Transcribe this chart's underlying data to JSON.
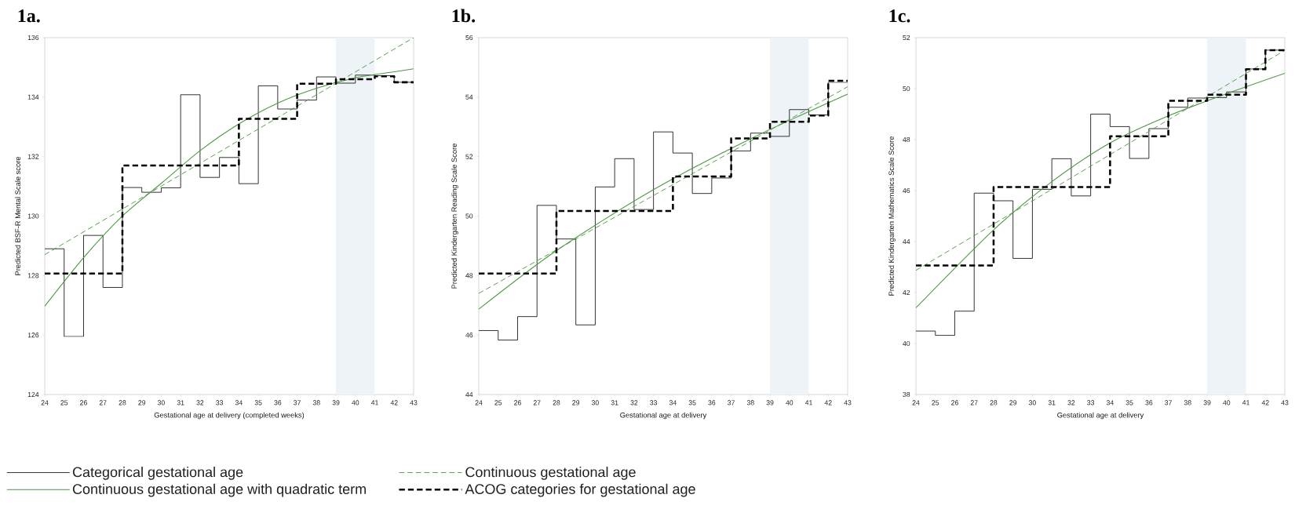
{
  "chart_data": [
    {
      "type": "line",
      "title": "1a.",
      "xlabel": "Gestational age at delivery (completed weeks)",
      "ylabel": "Predicted BSF-R Mental Scale score",
      "xlim": [
        24,
        43
      ],
      "xticks": [
        24,
        25,
        26,
        27,
        28,
        29,
        30,
        31,
        32,
        33,
        34,
        35,
        36,
        37,
        38,
        39,
        40,
        41,
        42,
        43
      ],
      "ylim": [
        124,
        136
      ],
      "yticks": [
        124,
        126,
        128,
        130,
        132,
        134,
        136
      ],
      "legend": "bottom",
      "bands": [
        {
          "axis": "x",
          "from": 39,
          "to": 41,
          "color": "#eef3f8"
        }
      ],
      "series": [
        {
          "name": "Categorical gestational age",
          "type": "step",
          "line_style": "solid",
          "color": "#000000",
          "x": [
            24,
            25,
            26,
            27,
            28,
            29,
            30,
            31,
            32,
            33,
            34,
            35,
            36,
            37,
            38,
            39,
            40,
            41,
            42,
            43
          ],
          "values": [
            128.9,
            125.95,
            129.35,
            127.6,
            130.96,
            130.8,
            130.95,
            134.08,
            131.3,
            131.97,
            131.09,
            134.38,
            133.6,
            133.9,
            134.68,
            134.47,
            134.74,
            134.72,
            134.5,
            134.5
          ]
        },
        {
          "name": "Continuous gestational age",
          "line_style": "dashed",
          "color": "#4a9a3f",
          "x": [
            24,
            43
          ],
          "values": [
            128.7,
            136.0
          ]
        },
        {
          "name": "Continuous gestational age with quadratic term",
          "line_style": "solid",
          "color": "#4a9a3f",
          "x": [
            24,
            26,
            28,
            30,
            32,
            34,
            36,
            38,
            40,
            42,
            43
          ],
          "values": [
            126.97,
            128.6,
            130.0,
            131.1,
            132.2,
            133.1,
            133.8,
            134.3,
            134.65,
            134.85,
            134.95
          ]
        },
        {
          "name": "ACOG categories for gestational age",
          "type": "step",
          "line_style": "dashed",
          "color": "#000000",
          "x": [
            24,
            28,
            34,
            37,
            39,
            41,
            42,
            43
          ],
          "values": [
            128.07,
            131.7,
            133.27,
            134.45,
            134.6,
            134.7,
            134.5,
            134.5
          ]
        }
      ]
    },
    {
      "type": "line",
      "title": "1b.",
      "xlabel": "Gestational age at delivery",
      "ylabel": "Predicted Kindergarten Reading Scale Score",
      "xlim": [
        24,
        43
      ],
      "xticks": [
        24,
        25,
        26,
        27,
        28,
        29,
        30,
        31,
        32,
        33,
        34,
        35,
        36,
        37,
        38,
        39,
        40,
        41,
        42,
        43
      ],
      "ylim": [
        44,
        56
      ],
      "yticks": [
        44,
        46,
        48,
        50,
        52,
        54,
        56
      ],
      "bands": [
        {
          "axis": "x",
          "from": 39,
          "to": 41,
          "color": "#eef3f8"
        }
      ],
      "series": [
        {
          "type": "step",
          "line_style": "solid",
          "color": "#000000",
          "x": [
            24,
            25,
            26,
            27,
            28,
            29,
            30,
            31,
            32,
            33,
            34,
            35,
            36,
            37,
            38,
            39,
            40,
            41,
            42,
            43
          ],
          "values": [
            46.15,
            45.83,
            46.62,
            50.36,
            49.23,
            46.34,
            50.98,
            51.93,
            50.22,
            52.83,
            52.12,
            50.76,
            51.28,
            52.19,
            52.79,
            52.68,
            53.58,
            53.4,
            54.5,
            54.5
          ]
        },
        {
          "line_style": "dashed",
          "color": "#4a9a3f",
          "x": [
            24,
            43
          ],
          "values": [
            47.4,
            54.35
          ]
        },
        {
          "line_style": "solid",
          "color": "#4a9a3f",
          "x": [
            24,
            28,
            33,
            38,
            43
          ],
          "values": [
            46.87,
            48.84,
            50.89,
            52.6,
            54.1
          ]
        },
        {
          "type": "step",
          "line_style": "dashed",
          "color": "#000000",
          "x": [
            24,
            28,
            34,
            37,
            39,
            41,
            42,
            43
          ],
          "values": [
            48.07,
            50.17,
            51.33,
            52.61,
            53.17,
            53.38,
            54.55,
            54.55
          ]
        }
      ]
    },
    {
      "type": "line",
      "title": "1c.",
      "xlabel": "Gestational age at delivery",
      "ylabel": "Predicted Kindergarten Mathematics Scale Score",
      "xlim": [
        24,
        43
      ],
      "xticks": [
        24,
        25,
        26,
        27,
        28,
        29,
        30,
        31,
        32,
        33,
        34,
        35,
        36,
        37,
        38,
        39,
        40,
        41,
        42,
        43
      ],
      "ylim": [
        38,
        52
      ],
      "yticks": [
        38,
        40,
        42,
        44,
        46,
        48,
        50,
        52
      ],
      "bands": [
        {
          "axis": "x",
          "from": 39,
          "to": 41,
          "color": "#eef3f8"
        }
      ],
      "series": [
        {
          "type": "step",
          "line_style": "solid",
          "color": "#000000",
          "x": [
            24,
            25,
            26,
            27,
            28,
            29,
            30,
            31,
            32,
            33,
            34,
            35,
            36,
            37,
            38,
            39,
            40,
            41,
            42,
            43
          ],
          "values": [
            40.49,
            40.32,
            41.27,
            45.9,
            45.6,
            43.34,
            46.05,
            47.25,
            45.79,
            49.0,
            48.51,
            47.26,
            48.43,
            49.27,
            49.63,
            49.65,
            49.87,
            50.77,
            51.51,
            51.51
          ]
        },
        {
          "line_style": "dashed",
          "color": "#4a9a3f",
          "x": [
            24,
            43
          ],
          "values": [
            42.87,
            51.5
          ]
        },
        {
          "line_style": "solid",
          "color": "#4a9a3f",
          "x": [
            24,
            28,
            31,
            34,
            37,
            40,
            43
          ],
          "values": [
            41.4,
            44.46,
            46.35,
            47.87,
            48.93,
            49.8,
            50.6
          ]
        },
        {
          "type": "step",
          "line_style": "dashed",
          "color": "#000000",
          "x": [
            24,
            28,
            34,
            37,
            39,
            41,
            42,
            43
          ],
          "values": [
            43.06,
            46.14,
            48.13,
            49.52,
            49.76,
            50.76,
            51.51,
            51.51
          ]
        }
      ]
    }
  ]
}
